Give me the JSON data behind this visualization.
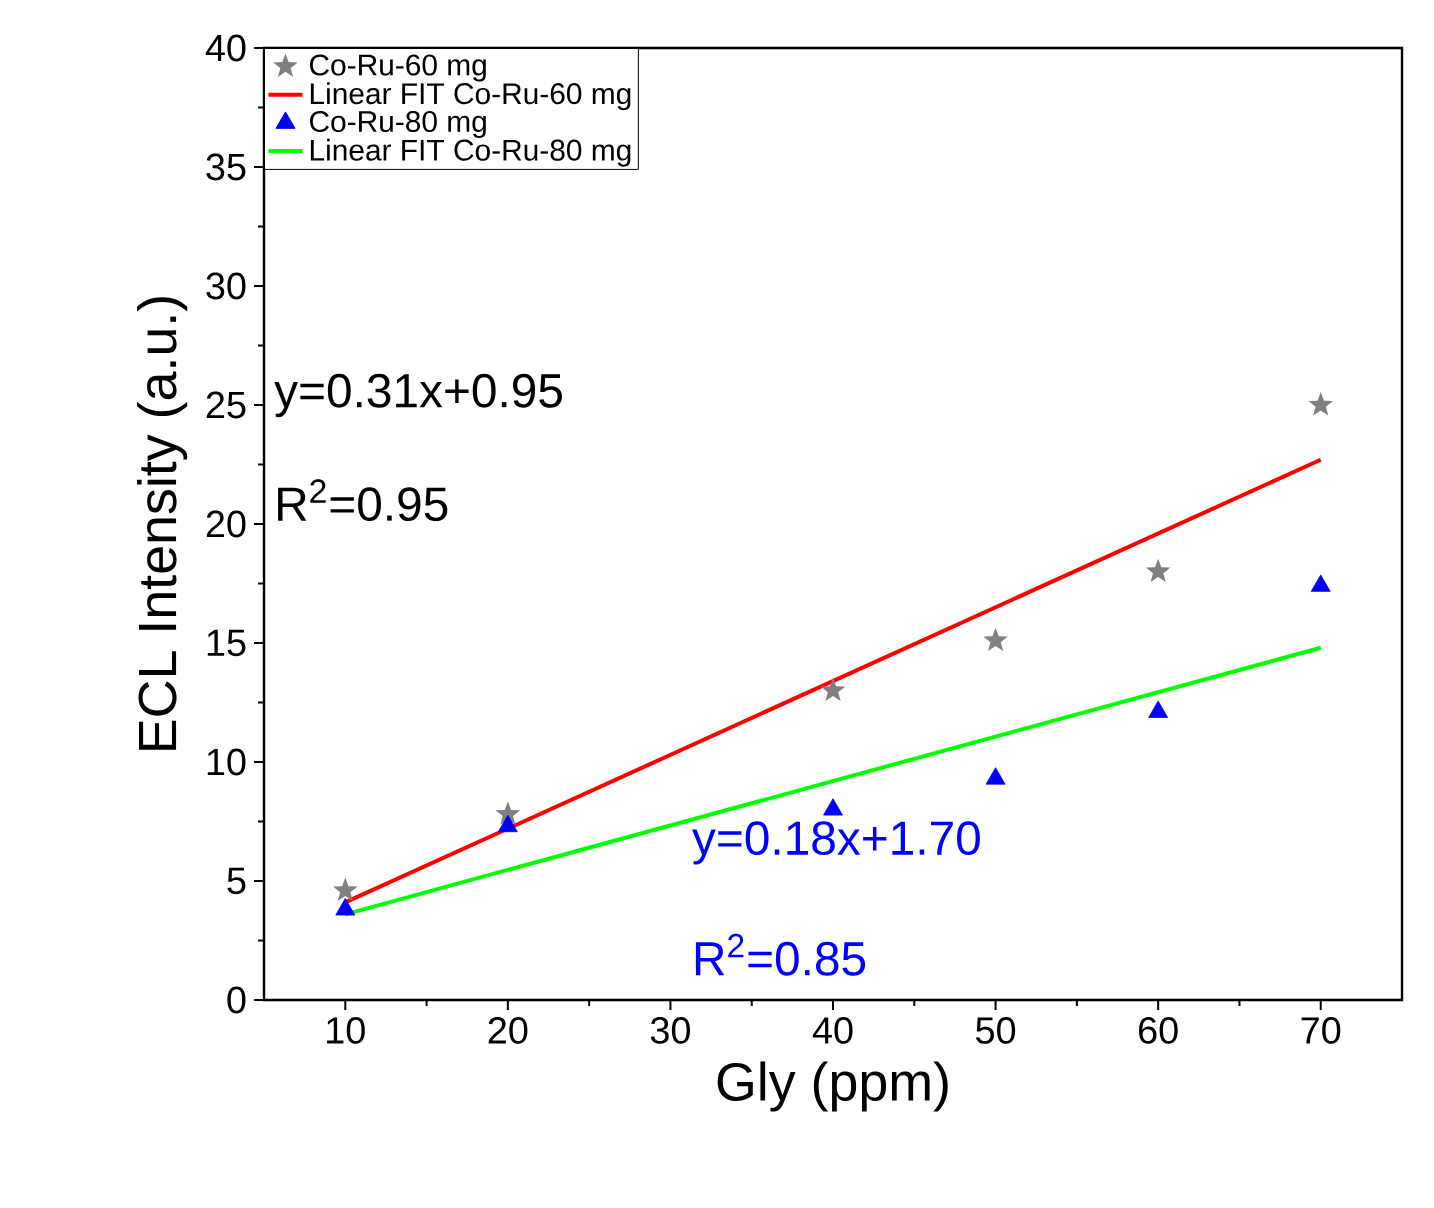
{
  "chart_data": {
    "type": "scatter",
    "xlabel": "Gly (ppm)",
    "ylabel": "ECL Intensity (a.u.)",
    "xlim": [
      5,
      75
    ],
    "xticks": [
      10,
      20,
      30,
      40,
      50,
      60,
      70
    ],
    "ylim": [
      0,
      40
    ],
    "yticks": [
      0,
      5,
      10,
      15,
      20,
      25,
      30,
      35,
      40
    ],
    "grid": false,
    "legend": "top left",
    "series": [
      {
        "name": "Co-Ru-60 mg",
        "type": "scatter",
        "marker": "star",
        "color": "#808080",
        "x": [
          10,
          20,
          40,
          50,
          60,
          70
        ],
        "values": [
          4.6,
          7.8,
          13.0,
          15.1,
          18.0,
          25.0
        ]
      },
      {
        "name": "Linear FIT Co-Ru-60 mg",
        "type": "line",
        "marker": "none",
        "color": "#ff0000",
        "x": [
          10,
          70
        ],
        "values": [
          4.1,
          22.7
        ]
      },
      {
        "name": "Co-Ru-80 mg",
        "type": "scatter",
        "marker": "triangle",
        "color": "#0000ff",
        "x": [
          10,
          20,
          40,
          50,
          60,
          70
        ],
        "values": [
          3.8,
          7.3,
          8.0,
          9.3,
          12.1,
          17.4
        ]
      },
      {
        "name": "Linear FIT Co-Ru-80 mg",
        "type": "line",
        "marker": "none",
        "color": "#00ff00",
        "x": [
          10,
          70
        ],
        "values": [
          3.6,
          14.8
        ]
      }
    ],
    "annotations": [
      "y=0.31x+0.95",
      "R$^{2}$=0.95",
      "y=0.18x+1.70",
      "R$^{2}$=0.85"
    ]
  }
}
